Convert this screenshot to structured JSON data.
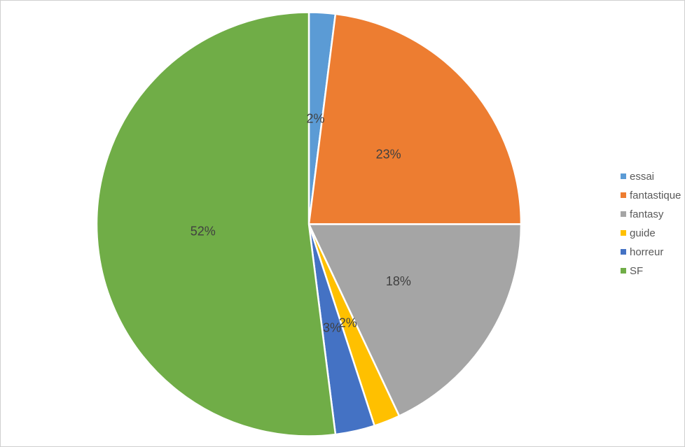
{
  "frame": {
    "background_color": "#FFFFFF",
    "border_color": "#CFCFCF"
  },
  "chart_data": {
    "type": "pie",
    "title": "",
    "categories": [
      "essai",
      "fantastique",
      "fantasy",
      "guide",
      "horreur",
      "SF"
    ],
    "values": [
      2,
      23,
      18,
      2,
      3,
      52
    ],
    "data_labels": [
      "2%",
      "23%",
      "18%",
      "2%",
      "3%",
      "52%"
    ],
    "colors": [
      "#5B9BD5",
      "#ED7D31",
      "#A5A5A5",
      "#FFC000",
      "#4472C4",
      "#70AD47"
    ],
    "start_angle_deg": 0,
    "direction": "clockwise",
    "slice_border_color": "#FFFFFF",
    "data_label_color": "#404040",
    "legend": {
      "position": "right",
      "entries": [
        "essai",
        "fantastique",
        "fantasy",
        "guide",
        "horreur",
        "SF"
      ],
      "text_color": "#595959"
    }
  }
}
